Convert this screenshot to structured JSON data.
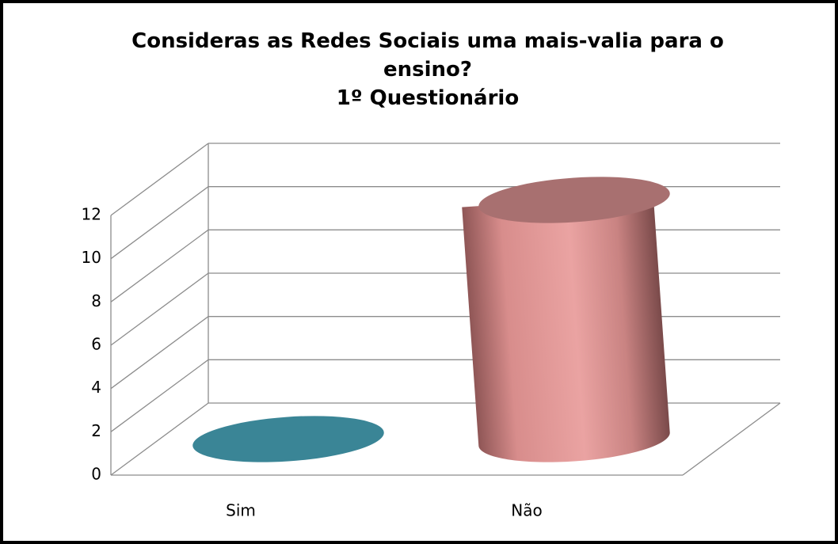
{
  "chart_data": {
    "type": "bar3d",
    "title": "Consideras as Redes Sociais uma mais-valia para o ensino?",
    "subtitle": "1º Questionário",
    "categories": [
      "Sim",
      "Não"
    ],
    "values": [
      0,
      12
    ],
    "colors": [
      "#3a8596",
      "#e59c9b"
    ],
    "ylim": [
      0,
      12
    ],
    "yticks": [
      0,
      2,
      4,
      6,
      8,
      10,
      12
    ],
    "grid": true
  }
}
